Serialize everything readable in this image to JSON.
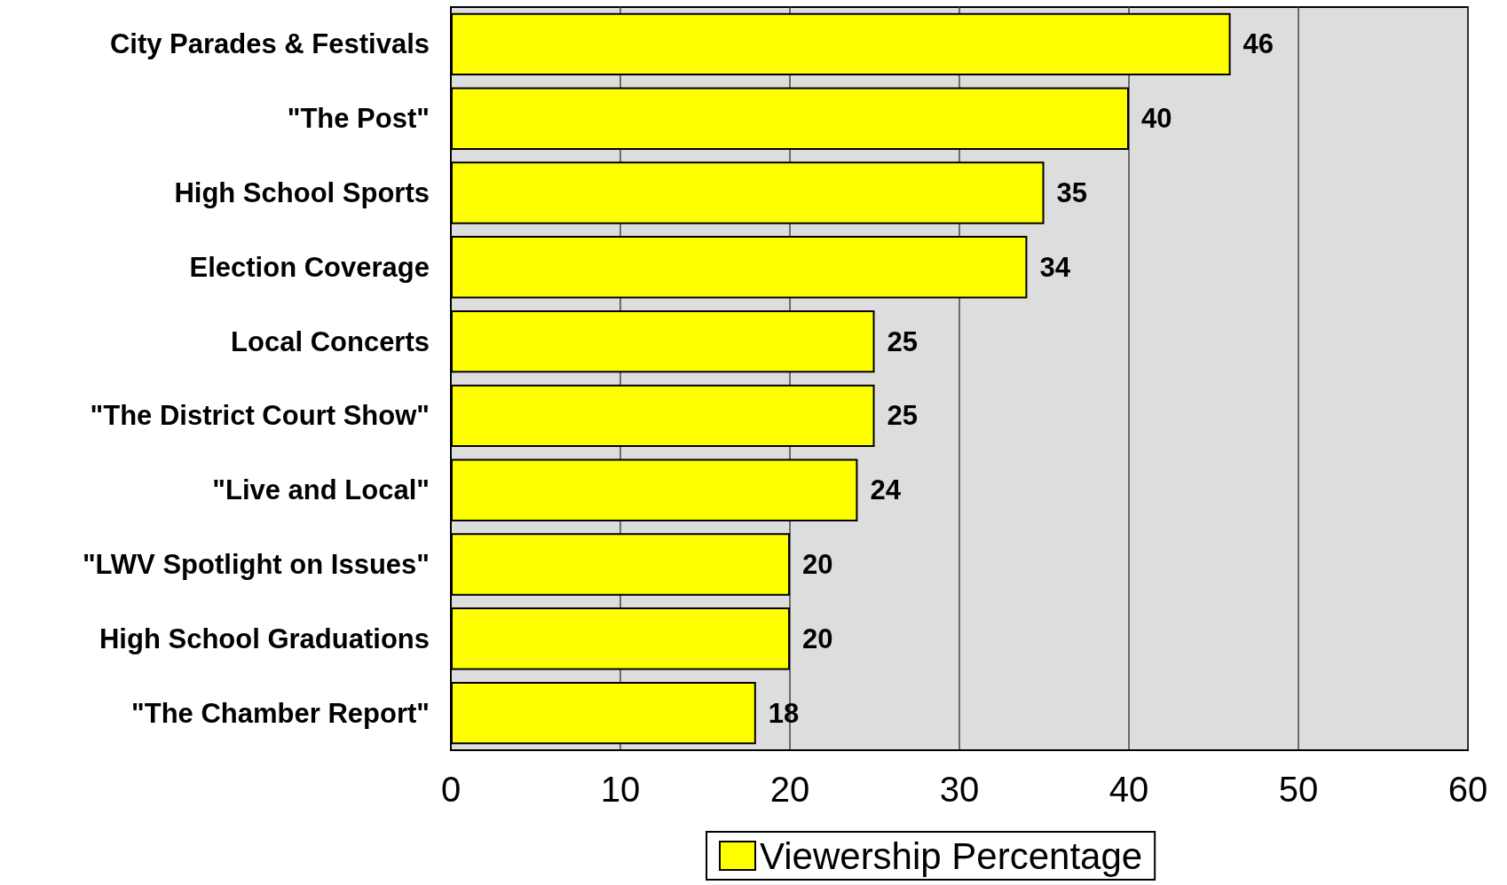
{
  "chart_data": {
    "type": "bar",
    "orientation": "horizontal",
    "categories": [
      "City Parades & Festivals",
      "\"The Post\"",
      "High School Sports",
      "Election Coverage",
      "Local Concerts",
      "\"The District Court Show\"",
      "\"Live and Local\"",
      "\"LWV Spotlight on Issues\"",
      "High School Graduations",
      "\"The Chamber Report\""
    ],
    "series": [
      {
        "name": "Viewership Percentage",
        "color": "#ffff00",
        "values": [
          46,
          40,
          35,
          34,
          25,
          25,
          24,
          20,
          20,
          18
        ]
      }
    ],
    "xlim": [
      0,
      60
    ],
    "xticks": [
      0,
      10,
      20,
      30,
      40,
      50,
      60
    ],
    "grid": "x",
    "legend": "bottom",
    "data_labels": true
  }
}
